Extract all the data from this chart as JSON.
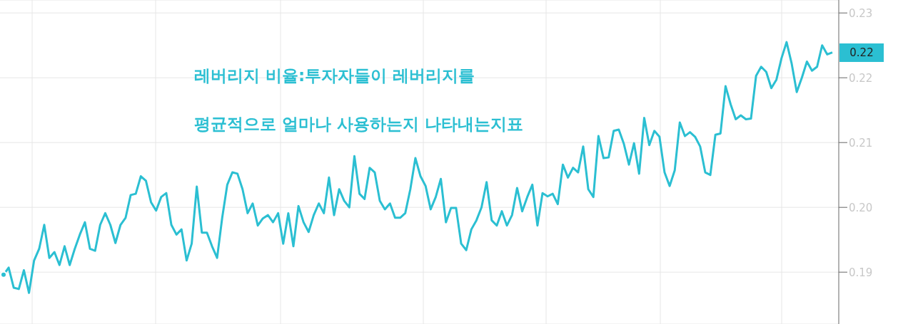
{
  "chart_data": {
    "type": "line",
    "title": "레버리지 비율:투자자들이 레버리지를\n평균적으로 얼마나 사용하는지 나타내는지표",
    "categories": [
      null,
      null,
      null,
      null,
      null,
      null,
      null,
      null,
      null,
      null,
      null,
      null,
      null,
      null,
      null,
      null,
      null,
      null,
      null,
      null,
      null,
      null,
      null,
      null,
      null,
      null,
      null,
      null,
      null,
      null,
      null,
      null,
      null,
      null,
      null,
      null,
      null,
      null,
      null,
      null,
      null,
      null,
      null,
      null,
      null,
      null,
      null,
      null,
      null,
      null,
      null,
      null,
      null,
      null,
      null,
      null,
      null,
      null,
      null,
      null,
      null,
      null,
      null,
      null,
      null,
      null,
      null,
      null,
      null,
      null,
      null,
      null,
      null,
      null,
      null,
      null,
      null,
      null,
      null,
      null,
      null,
      null,
      null,
      null,
      null,
      null,
      null,
      null,
      null,
      null,
      null,
      null,
      null,
      null,
      null,
      null,
      null,
      null,
      null,
      null,
      null,
      null,
      null,
      null,
      null,
      null,
      null,
      null,
      null,
      null,
      null,
      null,
      null,
      null,
      null,
      null,
      null,
      null,
      null,
      null,
      null,
      null,
      null,
      null,
      null,
      null,
      null,
      null,
      null,
      null,
      null,
      null,
      null,
      null,
      null,
      null,
      null,
      null,
      null,
      null,
      null,
      null,
      null,
      null,
      null,
      null,
      null,
      null,
      null,
      null,
      null,
      null,
      null,
      null,
      null,
      null,
      null,
      null,
      null,
      null,
      null,
      null,
      null,
      null
    ],
    "series": [
      {
        "color": "#2bbfd2",
        "values": [
          0.1896,
          0.1907,
          0.1876,
          0.1874,
          0.1903,
          0.1868,
          0.1918,
          0.1936,
          0.1973,
          0.1922,
          0.1931,
          0.1911,
          0.194,
          0.1911,
          0.1936,
          0.1958,
          0.1977,
          0.1936,
          0.1933,
          0.1973,
          0.1991,
          0.1973,
          0.1945,
          0.1973,
          0.1984,
          0.2019,
          0.2021,
          0.2048,
          0.2041,
          0.2008,
          0.1995,
          0.2016,
          0.2022,
          0.1973,
          0.1958,
          0.1966,
          0.1918,
          0.1944,
          0.2032,
          0.1961,
          0.1961,
          0.194,
          0.1922,
          0.1984,
          0.2035,
          0.2054,
          0.2052,
          0.2028,
          0.1991,
          0.2006,
          0.1972,
          0.1983,
          0.1988,
          0.1977,
          0.1991,
          0.1944,
          0.1991,
          0.194,
          0.2002,
          0.1977,
          0.1962,
          0.1988,
          0.2006,
          0.1991,
          0.2046,
          0.1988,
          0.2028,
          0.201,
          0.2,
          0.2079,
          0.2021,
          0.2013,
          0.2061,
          0.2054,
          0.201,
          0.1997,
          0.2006,
          0.1984,
          0.1984,
          0.1991,
          0.2028,
          0.2076,
          0.2048,
          0.2033,
          0.1997,
          0.2016,
          0.2044,
          0.1977,
          0.1999,
          0.1999,
          0.1944,
          0.1934,
          0.1966,
          0.198,
          0.2,
          0.2039,
          0.198,
          0.1972,
          0.1994,
          0.1972,
          0.1988,
          0.203,
          0.1994,
          0.2016,
          0.2035,
          0.1972,
          0.2022,
          0.2017,
          0.2021,
          0.2005,
          0.2066,
          0.2046,
          0.2061,
          0.2054,
          0.2094,
          0.2028,
          0.2016,
          0.211,
          0.2076,
          0.2077,
          0.2118,
          0.212,
          0.2098,
          0.2066,
          0.2099,
          0.2052,
          0.2138,
          0.2096,
          0.2118,
          0.2109,
          0.2054,
          0.2033,
          0.2057,
          0.2131,
          0.211,
          0.2116,
          0.2109,
          0.2094,
          0.2054,
          0.205,
          0.2112,
          0.2114,
          0.2187,
          0.2159,
          0.2136,
          0.2142,
          0.2136,
          0.2137,
          0.2203,
          0.2217,
          0.2209,
          0.2184,
          0.2197,
          0.223,
          0.2255,
          0.2222,
          0.2178,
          0.22,
          0.2225,
          0.2211,
          0.2217,
          0.225,
          0.2236,
          0.2239
        ]
      }
    ],
    "ylim": [
      0.182,
      0.232
    ],
    "yticks": [
      0.19,
      {
        "value": 0.2,
        "label": "0.20"
      },
      0.21,
      0.22,
      0.23
    ],
    "grid": true,
    "marker": "none",
    "line_style": "solid",
    "annotations": [
      "0.22"
    ]
  }
}
